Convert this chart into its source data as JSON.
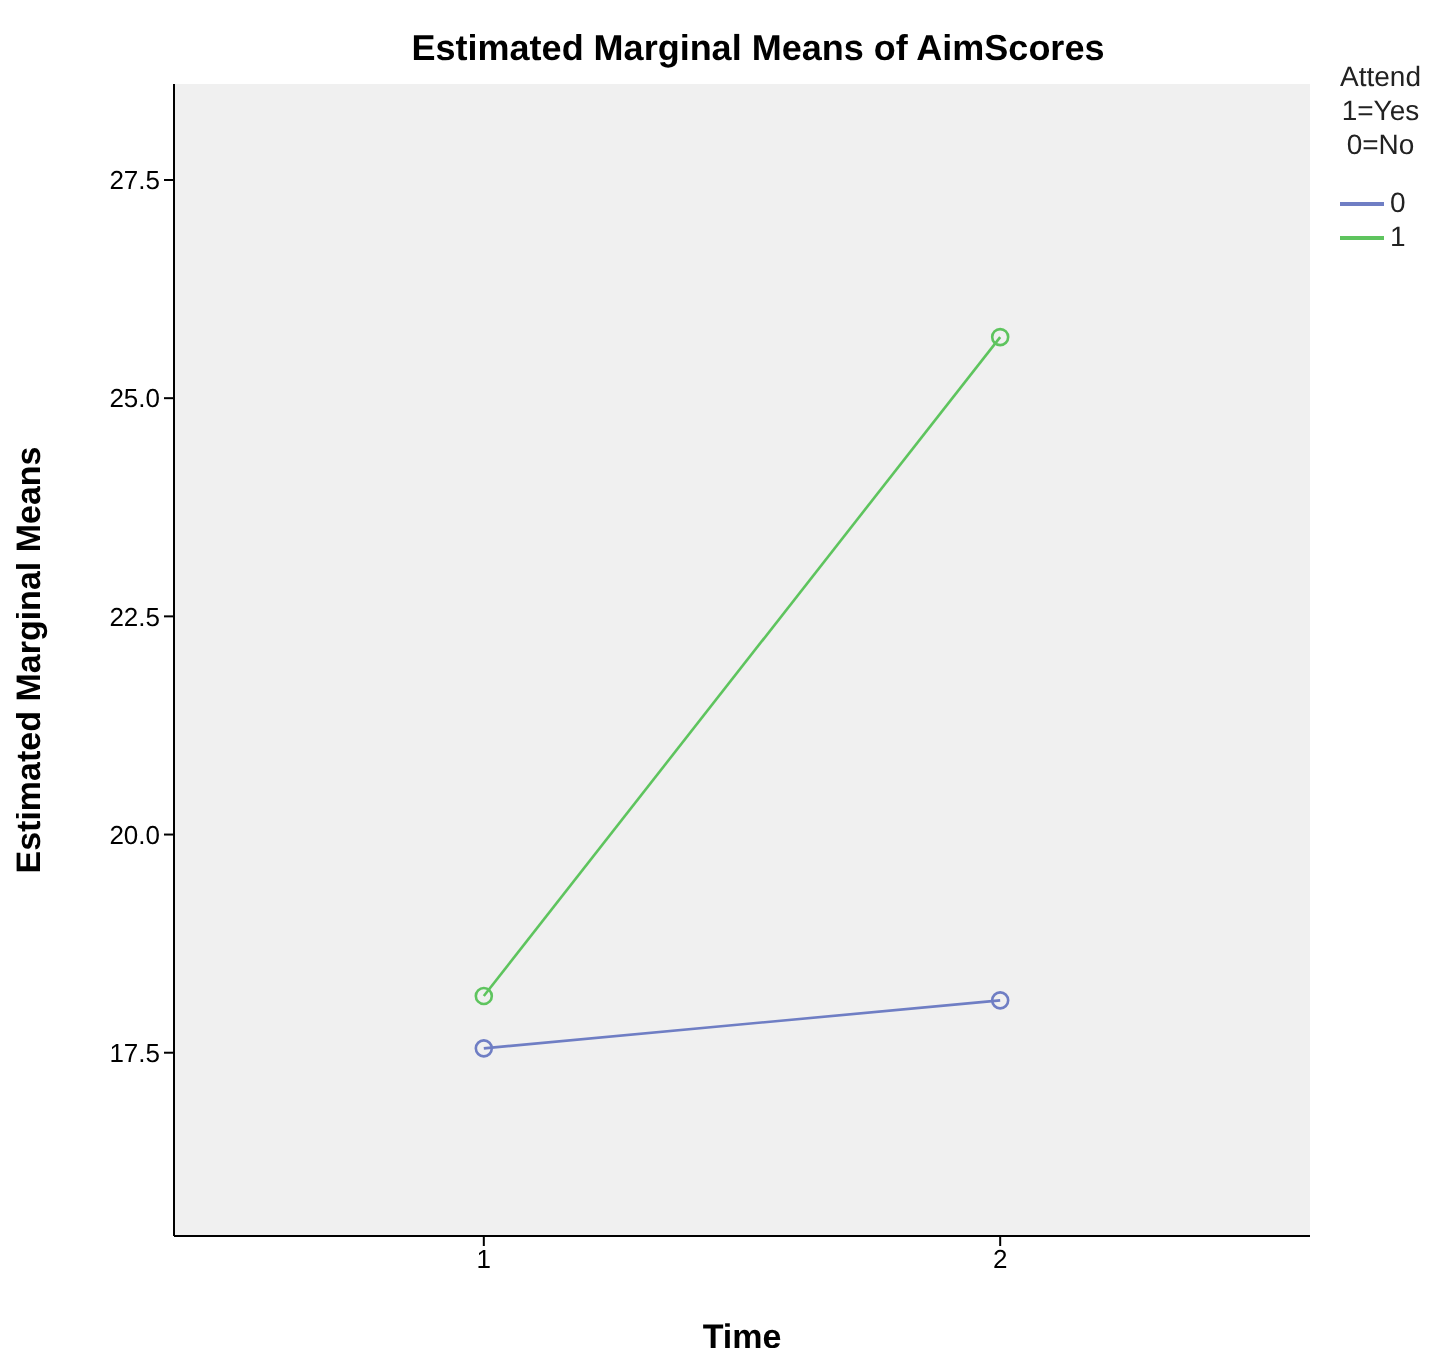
{
  "chart_data": {
    "type": "line",
    "title": "Estimated Marginal Means of AimScores",
    "xlabel": "Time",
    "ylabel": "Estimated Marginal Means",
    "legend_title": "Attend\n1=Yes\n0=No",
    "x": [
      1,
      2
    ],
    "series": [
      {
        "name": "0",
        "color": "#6f7ec4",
        "values": [
          17.55,
          18.1
        ]
      },
      {
        "name": "1",
        "color": "#5ec45e",
        "values": [
          18.15,
          25.7
        ]
      }
    ],
    "xlim": [
      0.4,
      2.6
    ],
    "xticks": [
      1,
      2
    ],
    "ylim": [
      15.4,
      28.6
    ],
    "yticks": [
      17.5,
      {
        "value": 20,
        "label": "20.0"
      },
      22.5,
      {
        "value": 25,
        "label": "25.0"
      },
      27.5
    ],
    "grid": false,
    "legend": "top right",
    "marker": "circle",
    "line_style": "solid"
  }
}
